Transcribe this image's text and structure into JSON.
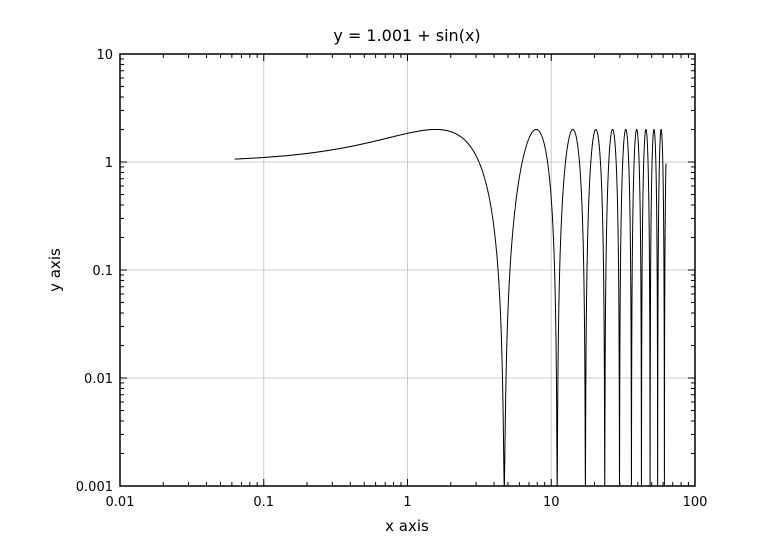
{
  "chart_data": {
    "type": "line",
    "title": "y = 1.001 + sin(x)",
    "xlabel": "x axis",
    "ylabel": "y axis",
    "xscale": "log",
    "yscale": "log",
    "xlim": [
      0.01,
      100
    ],
    "ylim": [
      0.001,
      10
    ],
    "grid": true,
    "legend": "none",
    "line_color": "#000000",
    "grid_color": "#cccccc",
    "x_tick_labels": [
      "0.01",
      "0.1",
      "1",
      "10",
      "100"
    ],
    "y_tick_labels": [
      "0.001",
      "0.01",
      "0.1",
      "1",
      "10"
    ],
    "series": [
      {
        "function": "1.001 + sin(x)",
        "x_range": [
          0.0628,
          62.8
        ]
      }
    ]
  }
}
